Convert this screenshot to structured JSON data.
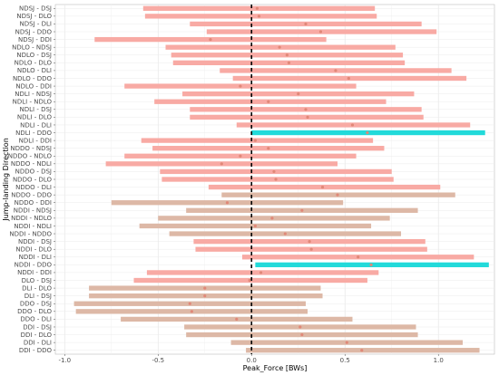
{
  "chart_data": {
    "type": "interval",
    "xlabel": "Peak_Force [BWs]",
    "ylabel": "Jump-landing Direction",
    "xlim": [
      -1.05,
      1.3
    ],
    "xticks": [
      -1.0,
      -0.5,
      0.0,
      0.5,
      1.0
    ],
    "xtick_labels": [
      "-1.0",
      "-0.5",
      "0.0",
      "0.5",
      "1.0"
    ],
    "reference_line_x": 0,
    "grid": true,
    "colors": {
      "pink": "#f8aaa4",
      "tan": "#ddb8a6",
      "cyan": "#22dada",
      "point": "#e08878",
      "refline": "#000000"
    },
    "rows": [
      {
        "label": "NDSJ - DSJ",
        "low": -0.58,
        "high": 0.66,
        "estimate": 0.03,
        "color": "pink"
      },
      {
        "label": "NDSJ - DLO",
        "low": -0.57,
        "high": 0.67,
        "estimate": 0.04,
        "color": "pink"
      },
      {
        "label": "NDSJ - DLI",
        "low": -0.33,
        "high": 0.91,
        "estimate": 0.29,
        "color": "pink"
      },
      {
        "label": "NDSJ - DDO",
        "low": -0.24,
        "high": 0.99,
        "estimate": 0.37,
        "color": "pink"
      },
      {
        "label": "NDSJ - DDI",
        "low": -0.84,
        "high": 0.4,
        "estimate": -0.22,
        "color": "pink"
      },
      {
        "label": "NDLO - NDSJ",
        "low": -0.46,
        "high": 0.77,
        "estimate": 0.15,
        "color": "pink"
      },
      {
        "label": "NDLO - DSJ",
        "low": -0.43,
        "high": 0.81,
        "estimate": 0.19,
        "color": "pink"
      },
      {
        "label": "NDLO - DLO",
        "low": -0.42,
        "high": 0.82,
        "estimate": 0.2,
        "color": "pink"
      },
      {
        "label": "NDLO - DLI",
        "low": -0.17,
        "high": 1.07,
        "estimate": 0.45,
        "color": "pink"
      },
      {
        "label": "NDLO - DDO",
        "low": -0.1,
        "high": 1.15,
        "estimate": 0.52,
        "color": "pink"
      },
      {
        "label": "NDLO - DDI",
        "low": -0.68,
        "high": 0.56,
        "estimate": -0.06,
        "color": "pink"
      },
      {
        "label": "NDLI - NDSJ",
        "low": -0.37,
        "high": 0.87,
        "estimate": 0.25,
        "color": "pink"
      },
      {
        "label": "NDLI - NDLO",
        "low": -0.52,
        "high": 0.72,
        "estimate": 0.09,
        "color": "pink"
      },
      {
        "label": "NDLI - DSJ",
        "low": -0.33,
        "high": 0.91,
        "estimate": 0.29,
        "color": "pink"
      },
      {
        "label": "NDLI - DLO",
        "low": -0.33,
        "high": 0.92,
        "estimate": 0.3,
        "color": "pink"
      },
      {
        "label": "NDLI - DLI",
        "low": -0.08,
        "high": 1.17,
        "estimate": 0.54,
        "color": "pink"
      },
      {
        "label": "NDLI - DDO",
        "low": 0.0,
        "high": 1.25,
        "estimate": 0.62,
        "color": "cyan"
      },
      {
        "label": "NDLI - DDI",
        "low": -0.59,
        "high": 0.65,
        "estimate": 0.02,
        "color": "pink"
      },
      {
        "label": "NDDO - NDSJ",
        "low": -0.53,
        "high": 0.71,
        "estimate": 0.09,
        "color": "pink"
      },
      {
        "label": "NDDO - NDLO",
        "low": -0.68,
        "high": 0.56,
        "estimate": -0.06,
        "color": "pink"
      },
      {
        "label": "NDDO - NDLI",
        "low": -0.78,
        "high": 0.46,
        "estimate": -0.16,
        "color": "pink"
      },
      {
        "label": "NDDO - DSJ",
        "low": -0.49,
        "high": 0.75,
        "estimate": 0.12,
        "color": "pink"
      },
      {
        "label": "NDDO - DLO",
        "low": -0.48,
        "high": 0.76,
        "estimate": 0.13,
        "color": "pink"
      },
      {
        "label": "NDDO - DLI",
        "low": -0.23,
        "high": 1.01,
        "estimate": 0.38,
        "color": "pink"
      },
      {
        "label": "NDDO - DDO",
        "low": -0.16,
        "high": 1.09,
        "estimate": 0.46,
        "color": "tan"
      },
      {
        "label": "NDDO - DDI",
        "low": -0.75,
        "high": 0.49,
        "estimate": -0.13,
        "color": "tan"
      },
      {
        "label": "NDDI - NDSJ",
        "low": -0.35,
        "high": 0.89,
        "estimate": 0.27,
        "color": "tan"
      },
      {
        "label": "NDDI - NDLO",
        "low": -0.5,
        "high": 0.74,
        "estimate": 0.11,
        "color": "tan"
      },
      {
        "label": "NDDI - NDLI",
        "low": -0.6,
        "high": 0.64,
        "estimate": 0.02,
        "color": "tan"
      },
      {
        "label": "NDDI - NDDO",
        "low": -0.44,
        "high": 0.8,
        "estimate": 0.18,
        "color": "tan"
      },
      {
        "label": "NDDI - DSJ",
        "low": -0.31,
        "high": 0.93,
        "estimate": 0.31,
        "color": "pink"
      },
      {
        "label": "NDDI - DLO",
        "low": -0.3,
        "high": 0.94,
        "estimate": 0.32,
        "color": "pink"
      },
      {
        "label": "NDDI - DLI",
        "low": -0.05,
        "high": 1.19,
        "estimate": 0.57,
        "color": "pink"
      },
      {
        "label": "NDDI - DDO",
        "low": 0.02,
        "high": 1.27,
        "estimate": 0.64,
        "color": "cyan"
      },
      {
        "label": "NDDI - DDI",
        "low": -0.56,
        "high": 0.68,
        "estimate": 0.05,
        "color": "pink"
      },
      {
        "label": "DLO - DSJ",
        "low": -0.63,
        "high": 0.62,
        "estimate": -0.01,
        "color": "pink"
      },
      {
        "label": "DLI - DLO",
        "low": -0.87,
        "high": 0.37,
        "estimate": -0.25,
        "color": "tan"
      },
      {
        "label": "DLI - DSJ",
        "low": -0.87,
        "high": 0.38,
        "estimate": -0.25,
        "color": "tan"
      },
      {
        "label": "DDO - DSJ",
        "low": -0.95,
        "high": 0.29,
        "estimate": -0.33,
        "color": "tan"
      },
      {
        "label": "DDO - DLO",
        "low": -0.94,
        "high": 0.3,
        "estimate": -0.32,
        "color": "tan"
      },
      {
        "label": "DDO - DLI",
        "low": -0.7,
        "high": 0.54,
        "estimate": -0.08,
        "color": "tan"
      },
      {
        "label": "DDI - DSJ",
        "low": -0.36,
        "high": 0.88,
        "estimate": 0.26,
        "color": "tan"
      },
      {
        "label": "DDI - DLO",
        "low": -0.35,
        "high": 0.89,
        "estimate": 0.27,
        "color": "tan"
      },
      {
        "label": "DDI - DLI",
        "low": -0.11,
        "high": 1.13,
        "estimate": 0.51,
        "color": "tan"
      },
      {
        "label": "DDI - DDO",
        "low": -0.03,
        "high": 1.22,
        "estimate": 0.59,
        "color": "tan"
      }
    ]
  }
}
